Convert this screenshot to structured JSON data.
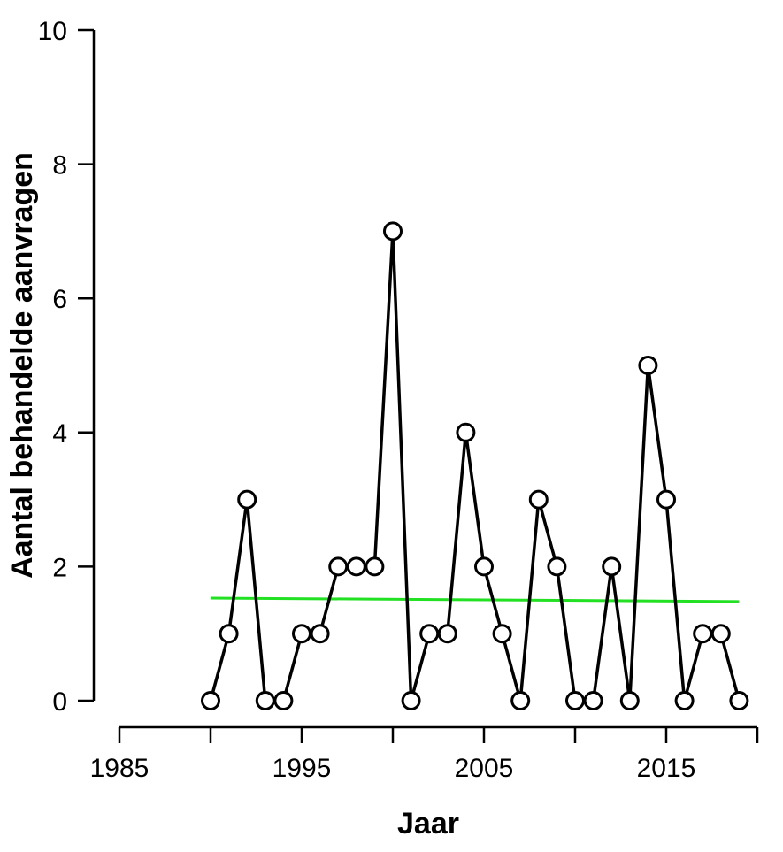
{
  "chart_data": {
    "type": "line",
    "title": "",
    "xlabel": "Jaar",
    "ylabel": "Aantal behandelde aanvragen",
    "xlim": [
      1985,
      2020
    ],
    "ylim": [
      0,
      10
    ],
    "x_ticks": [
      1985,
      1995,
      2005,
      2015
    ],
    "x_tick_labels": [
      "1985",
      "1995",
      "2005",
      "2015"
    ],
    "y_ticks": [
      0,
      2,
      4,
      6,
      8,
      10
    ],
    "y_tick_labels": [
      "0",
      "2",
      "4",
      "6",
      "8",
      "10"
    ],
    "grid": false,
    "legend": "none",
    "series": [
      {
        "color": "#000000",
        "marker": "open-circle",
        "x": [
          1990,
          1991,
          1992,
          1993,
          1994,
          1995,
          1996,
          1997,
          1998,
          1999,
          2000,
          2001,
          2002,
          2003,
          2004,
          2005,
          2006,
          2007,
          2008,
          2009,
          2010,
          2011,
          2012,
          2013,
          2014,
          2015,
          2016,
          2017,
          2018,
          2019
        ],
        "values": [
          0,
          1,
          3,
          0,
          0,
          1,
          1,
          2,
          2,
          2,
          7,
          0,
          1,
          1,
          4,
          2,
          1,
          0,
          3,
          2,
          0,
          0,
          2,
          0,
          5,
          3,
          0,
          1,
          1,
          0
        ]
      }
    ],
    "trend": {
      "color": "#22e022",
      "x": [
        1990,
        2019
      ],
      "values": [
        1.53,
        1.48
      ]
    }
  }
}
